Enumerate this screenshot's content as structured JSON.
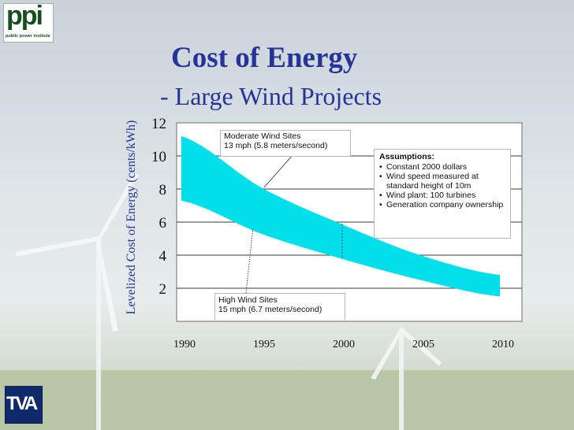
{
  "logos": {
    "ppi_mark": "ppi",
    "ppi_sub": "public power institute",
    "tva_mark": "TVA"
  },
  "slide": {
    "title": "Cost of Energy",
    "subtitle": "- Large Wind Projects"
  },
  "chart_data": {
    "type": "area",
    "title": "Cost of Energy",
    "subtitle": "- Large Wind Projects",
    "ylabel": "Levelized Cost of Energy (cents/kWh)",
    "xlabel": "",
    "x": [
      1990,
      1995,
      2000,
      2005,
      2010
    ],
    "xlim": [
      1990,
      2010
    ],
    "ylim": [
      0,
      12
    ],
    "yticks": [
      2,
      4,
      6,
      8,
      10,
      12
    ],
    "grid": "horizontal",
    "series": [
      {
        "name": "Moderate Wind Sites (upper bound)",
        "values": [
          11.2,
          8.1,
          5.9,
          4.0,
          2.8
        ]
      },
      {
        "name": "High Wind Sites (lower bound)",
        "values": [
          7.3,
          5.3,
          3.8,
          2.5,
          1.5
        ]
      }
    ],
    "band_color": "#00e0ea",
    "annotations": {
      "moderate": {
        "line1": "Moderate Wind Sites",
        "line2": "13 mph (5.8 meters/second)",
        "target_x": 1995.2,
        "target_y": 8.1
      },
      "high": {
        "line1": "High Wind Sites",
        "line2": "15 mph (6.7 meters/second)",
        "target_x": 1994.5,
        "target_y": 5.6
      },
      "marker_year": 2000
    },
    "assumptions": {
      "heading": "Assumptions:",
      "items": [
        "Constant 2000 dollars",
        "Wind speed measured at standard height of 10m",
        "Wind plant:  100 turbines",
        "Generation company ownership"
      ]
    }
  }
}
